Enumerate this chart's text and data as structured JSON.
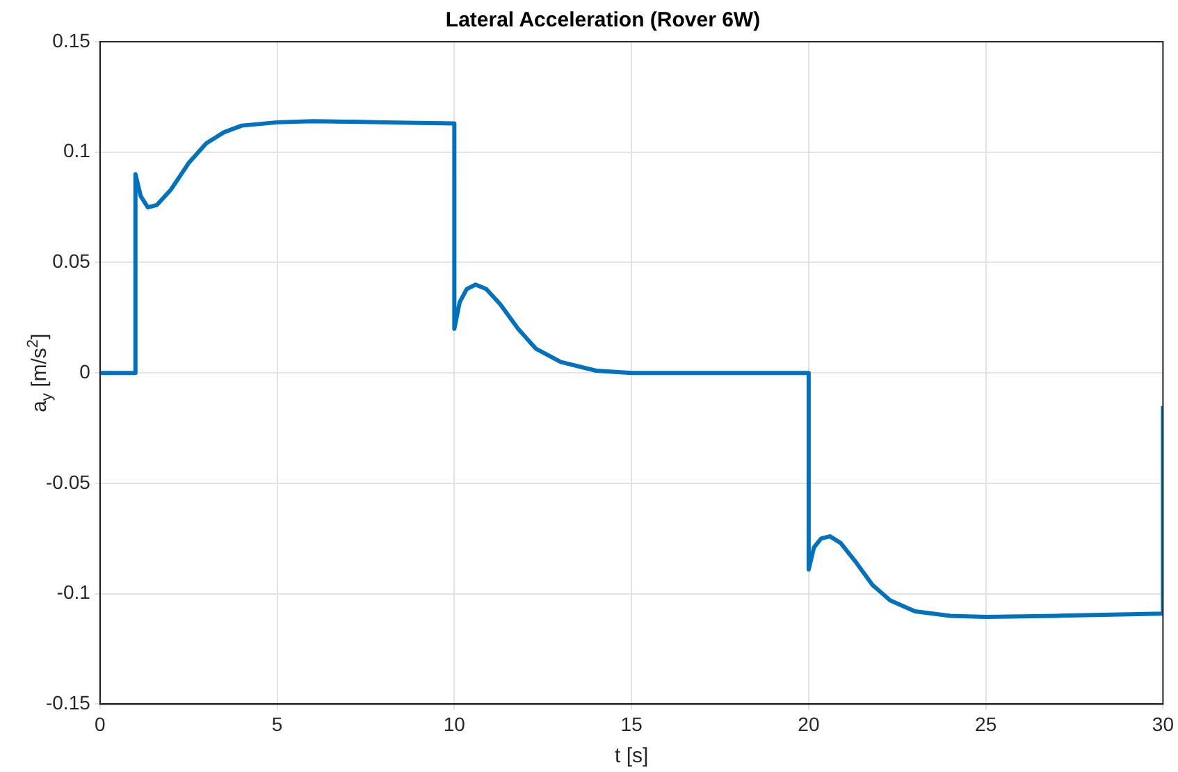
{
  "chart_data": {
    "type": "line",
    "title": "Lateral Acceleration (Rover 6W)",
    "xlabel": "t [s]",
    "ylabel": "a$_{y}$ [m/s$^{2}$]",
    "x": [
      0,
      1,
      1,
      1.15,
      1.35,
      1.6,
      2,
      2.5,
      3,
      3.5,
      4,
      5,
      6,
      7,
      8,
      9,
      10,
      10,
      10.15,
      10.35,
      10.6,
      10.9,
      11.3,
      11.8,
      12.3,
      13,
      14,
      15,
      20,
      20,
      20.15,
      20.35,
      20.6,
      20.9,
      21.3,
      21.8,
      22.3,
      23,
      24,
      25,
      27,
      30,
      30
    ],
    "series": [
      {
        "color": "#0072bd",
        "values": [
          0,
          0,
          0.09,
          0.08,
          0.075,
          0.076,
          0.083,
          0.095,
          0.104,
          0.109,
          0.112,
          0.1135,
          0.114,
          0.1138,
          0.1135,
          0.1132,
          0.113,
          0.02,
          0.032,
          0.038,
          0.04,
          0.038,
          0.031,
          0.02,
          0.011,
          0.005,
          0.001,
          0,
          0,
          -0.089,
          -0.079,
          -0.075,
          -0.074,
          -0.077,
          -0.085,
          -0.096,
          -0.103,
          -0.108,
          -0.11,
          -0.1105,
          -0.11,
          -0.109,
          -0.015
        ]
      }
    ],
    "xlim": [
      0,
      30
    ],
    "xticks": [
      0,
      5,
      10,
      15,
      20,
      25,
      30
    ],
    "ylim": [
      -0.15,
      0.15
    ],
    "yticks": [
      -0.15,
      -0.1,
      -0.05,
      0,
      0.05,
      0.1,
      0.15
    ],
    "grid": true,
    "legend": false,
    "marker": "none",
    "line_style": "solid"
  }
}
